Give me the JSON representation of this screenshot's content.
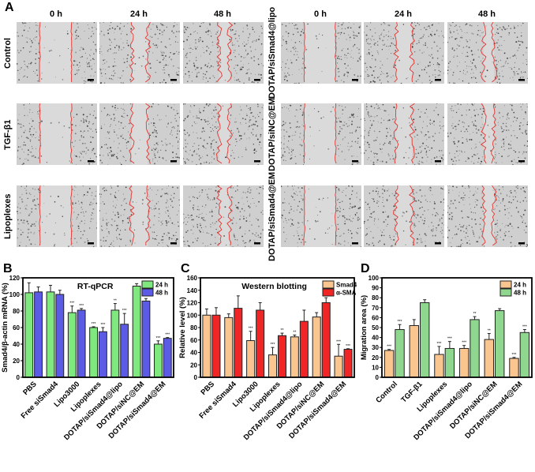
{
  "panelA": {
    "letter": "A",
    "time_labels": [
      "0 h",
      "24 h",
      "48 h"
    ],
    "left_groups": [
      "Control",
      "TGF-β1",
      "Lipoplexes"
    ],
    "right_groups": [
      "DOTAP/siSmad4@lipo",
      "DOTAP/siNC@EM",
      "DOTAP/siSmad4@EM"
    ],
    "wound_color": "#e8332e"
  },
  "chart_data": [
    {
      "id": "B",
      "type": "bar",
      "title": "RT-qPCR",
      "xlabel": "",
      "ylabel": "Smad4/β-actin mRNA (%)",
      "ylim": [
        0,
        120
      ],
      "yticks": [
        0,
        20,
        40,
        60,
        80,
        100,
        120
      ],
      "legend": "top-right",
      "categories": [
        "PBS",
        "Free siSmad4",
        "Lipo3000",
        "Lipoplexes",
        "DOTAP/siSmad4@lipo",
        "DOTAP/siNC@EM",
        "DOTAP/siSmad4@EM"
      ],
      "series": [
        {
          "name": "24 h",
          "color": "#7fe87f",
          "values": [
            102,
            103,
            78,
            60,
            81,
            110,
            40
          ],
          "errors": [
            12,
            8,
            8,
            1,
            8,
            3,
            4
          ],
          "sig": [
            "",
            "",
            "***",
            "***",
            "**",
            "",
            "***"
          ]
        },
        {
          "name": "48 h",
          "color": "#5b5be6",
          "values": [
            103,
            100,
            81,
            55,
            64,
            92,
            47
          ],
          "errors": [
            6,
            5,
            2,
            5,
            13,
            3,
            1
          ],
          "sig": [
            "",
            "",
            "***",
            "***",
            "***",
            "",
            "***"
          ]
        }
      ]
    },
    {
      "id": "C",
      "type": "bar",
      "title": "Western blotting",
      "xlabel": "",
      "ylabel": "Relative level (%)",
      "ylim": [
        0,
        160
      ],
      "yticks": [
        0,
        20,
        40,
        60,
        80,
        100,
        120,
        140,
        160
      ],
      "legend": "top-right",
      "categories": [
        "PBS",
        "Free siSmad4",
        "Lipo3000",
        "Lipoplexes",
        "DOTAP/siSmad4@lipo",
        "DOTAP/siNC@EM",
        "DOTAP/siSmad4@EM"
      ],
      "series": [
        {
          "name": "Smad4",
          "color": "#fbc58f",
          "values": [
            100,
            96,
            59,
            36,
            65,
            97,
            34
          ],
          "errors": [
            10,
            6,
            15,
            12,
            3,
            7,
            19
          ],
          "sig": [
            "",
            "",
            "***",
            "***",
            "**",
            "",
            "***"
          ]
        },
        {
          "name": "α-SMA",
          "color": "#f02626",
          "values": [
            100,
            111,
            108,
            67,
            90,
            120,
            45
          ],
          "errors": [
            12,
            20,
            12,
            4,
            18,
            8,
            1
          ],
          "sig": [
            "",
            "",
            "",
            "**",
            "",
            "",
            "***"
          ]
        }
      ]
    },
    {
      "id": "D",
      "type": "bar",
      "title": "",
      "xlabel": "",
      "ylabel": "Migration area (%)",
      "ylim": [
        0,
        100
      ],
      "yticks": [
        0,
        10,
        20,
        30,
        40,
        50,
        60,
        70,
        80,
        90,
        100
      ],
      "legend": "top-right",
      "categories": [
        "Control",
        "TGF-β1",
        "Lipoplexes",
        "DOTAP/siSmad4@lipo",
        "DOTAP/siNC@EM",
        "DOTAP/siSmad4@EM"
      ],
      "series": [
        {
          "name": "24 h",
          "color": "#fbc58f",
          "values": [
            27,
            52,
            23,
            29,
            38,
            19
          ],
          "errors": [
            1,
            6,
            8,
            3,
            6,
            1
          ],
          "sig": [
            "***",
            "",
            "***",
            "***",
            "**",
            "***"
          ]
        },
        {
          "name": "48 h",
          "color": "#8fd68f",
          "values": [
            48,
            75,
            29,
            58,
            67,
            45
          ],
          "errors": [
            5,
            3,
            7,
            3,
            2,
            3
          ],
          "sig": [
            "***",
            "",
            "***",
            "**",
            "",
            "***"
          ]
        }
      ]
    }
  ]
}
